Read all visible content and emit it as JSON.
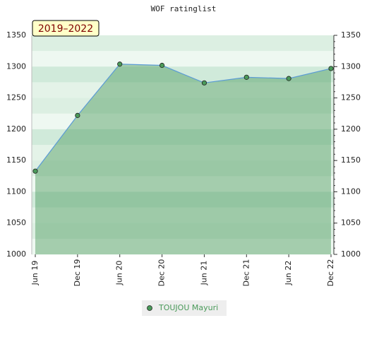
{
  "chart_data": {
    "type": "line",
    "title": "WOF ratinglist",
    "badge": "2019–2022",
    "categories": [
      "Jun 19",
      "Dec 19",
      "Jun 20",
      "Dec 20",
      "Jun 21",
      "Dec 21",
      "Jun 22",
      "Dec 22"
    ],
    "series": [
      {
        "name": "TOUJOU Mayuri",
        "color": "#4a9a5a",
        "values": [
          1133,
          1222,
          1304,
          1302,
          1274,
          1283,
          1281,
          1297
        ]
      }
    ],
    "ylim": [
      1000,
      1350
    ],
    "yticks": [
      1000,
      1050,
      1100,
      1150,
      1200,
      1250,
      1300,
      1350
    ]
  }
}
